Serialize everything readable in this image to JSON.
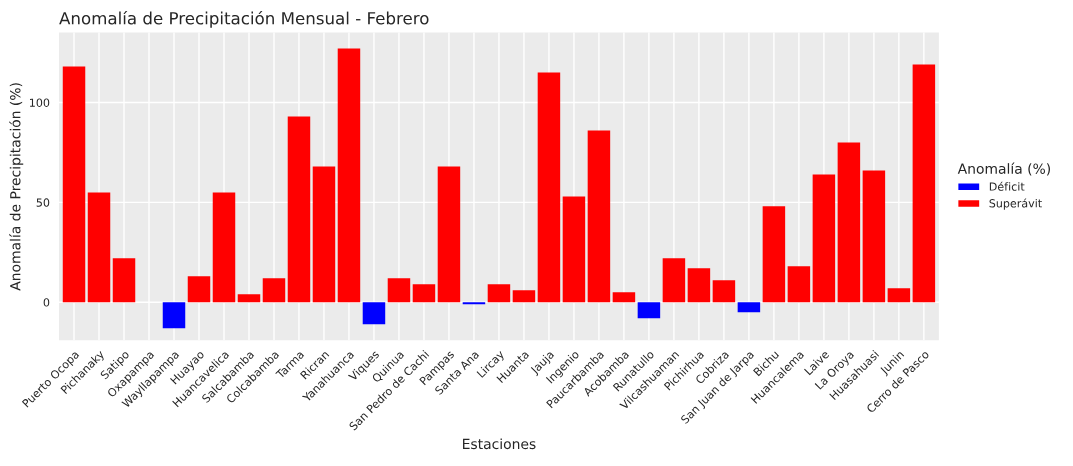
{
  "chart_data": {
    "type": "bar",
    "title": "Anomalía de Precipitación Mensual - Febrero",
    "xlabel": "Estaciones",
    "ylabel": "Anomalía de Precipitación (%)",
    "legend_title": "Anomalía (%)",
    "categories": [
      "Puerto Ocopa",
      "Pichanaky",
      "Satipo",
      "Oxapampa",
      "Wayllapampa",
      "Huayao",
      "Huancavelica",
      "Salcabamba",
      "Colcabamba",
      "Tarma",
      "Ricran",
      "Yanahuanca",
      "Viques",
      "Quinua",
      "San Pedro de Cachi",
      "Pampas",
      "Santa Ana",
      "Lircay",
      "Huanta",
      "Jauja",
      "Ingenio",
      "Paucarbamba",
      "Acobamba",
      "Runatullo",
      "Vilcashuaman",
      "Pichirhua",
      "Cobriza",
      "San Juan de Jarpa",
      "Bichu",
      "Huancalema",
      "Laive",
      "La Oroya",
      "Huasahuasi",
      "Junin",
      "Cerro de Pasco"
    ],
    "series": [
      {
        "name": "Déficit",
        "color": "#0000ff",
        "values": [
          null,
          null,
          null,
          null,
          -13,
          null,
          null,
          null,
          null,
          null,
          null,
          null,
          -11,
          null,
          null,
          null,
          -1,
          null,
          null,
          null,
          null,
          null,
          null,
          -8,
          null,
          null,
          null,
          -5,
          null,
          null,
          null,
          null,
          null,
          null,
          null
        ]
      },
      {
        "name": "Superávit",
        "color": "#ff0000",
        "values": [
          118,
          55,
          22,
          null,
          null,
          13,
          55,
          4,
          12,
          93,
          68,
          127,
          null,
          12,
          9,
          68,
          null,
          9,
          6,
          115,
          53,
          86,
          5,
          null,
          22,
          17,
          11,
          null,
          48,
          18,
          64,
          80,
          66,
          7,
          119
        ]
      }
    ],
    "ylim": [
      -19,
      135
    ],
    "yticks": [
      0,
      50,
      100
    ],
    "grid": true,
    "legend": "right"
  }
}
